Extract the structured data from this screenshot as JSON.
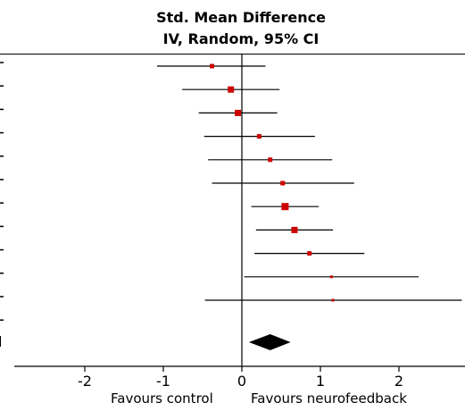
{
  "chart_data": {
    "type": "forest",
    "title": "Std. Mean Difference",
    "subtitle": "IV, Random, 95% CI",
    "xlim": [
      -3,
      2.8
    ],
    "xticks": [
      -2,
      -1,
      0,
      1,
      2
    ],
    "xtick_labels": [
      "-2",
      "-1",
      "0",
      "1",
      "2"
    ],
    "left_favour_label": "Favours control",
    "right_favour_label": "Favours neurofeedback",
    "marker_color": "#cc0000",
    "studies": [
      {
        "estimate": -0.38,
        "ci_low": -1.08,
        "ci_high": 0.3,
        "weight": "small"
      },
      {
        "estimate": -0.14,
        "ci_low": -0.76,
        "ci_high": 0.48,
        "weight": "medium"
      },
      {
        "estimate": -0.05,
        "ci_low": -0.55,
        "ci_high": 0.45,
        "weight": "medium"
      },
      {
        "estimate": 0.22,
        "ci_low": -0.48,
        "ci_high": 0.93,
        "weight": "small"
      },
      {
        "estimate": 0.36,
        "ci_low": -0.43,
        "ci_high": 1.15,
        "weight": "small"
      },
      {
        "estimate": 0.52,
        "ci_low": -0.38,
        "ci_high": 1.43,
        "weight": "small"
      },
      {
        "estimate": 0.55,
        "ci_low": 0.12,
        "ci_high": 0.98,
        "weight": "large"
      },
      {
        "estimate": 0.67,
        "ci_low": 0.18,
        "ci_high": 1.16,
        "weight": "medium"
      },
      {
        "estimate": 0.86,
        "ci_low": 0.16,
        "ci_high": 1.56,
        "weight": "small"
      },
      {
        "estimate": 1.14,
        "ci_low": 0.03,
        "ci_high": 2.25,
        "weight": "tiny"
      },
      {
        "estimate": 1.16,
        "ci_low": -0.47,
        "ci_high": 2.8,
        "weight": "tiny"
      }
    ],
    "overall": {
      "estimate": 0.36,
      "ci_low": 0.09,
      "ci_high": 0.62
    }
  }
}
